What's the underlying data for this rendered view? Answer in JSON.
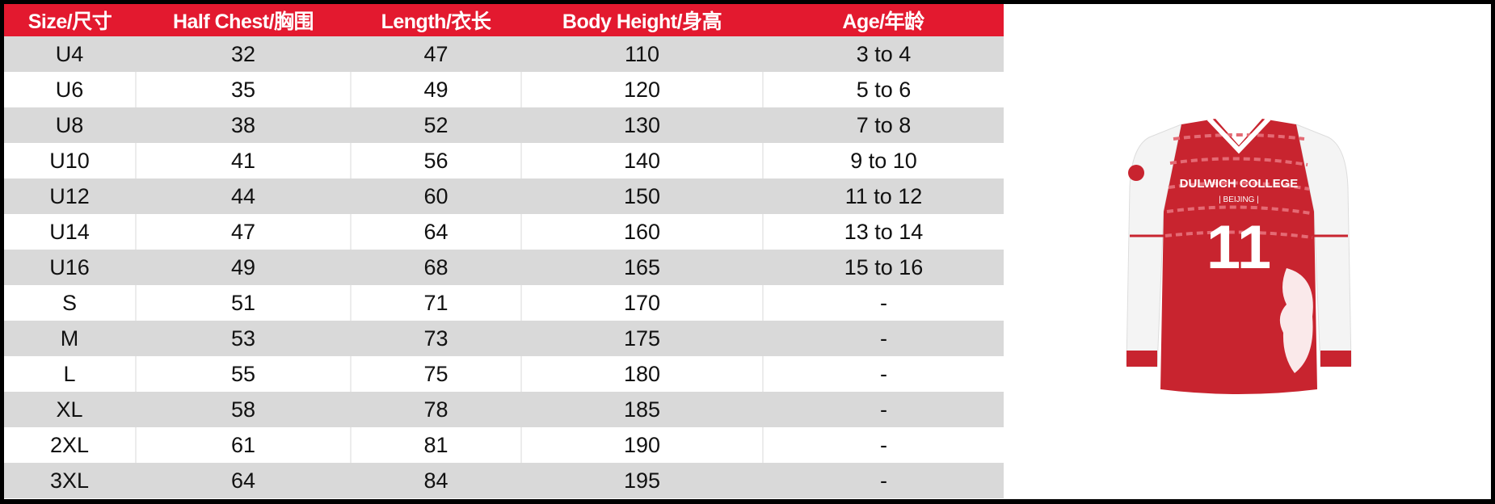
{
  "table": {
    "headers": [
      "Size/尺寸",
      "Half Chest/胸围",
      "Length/衣长",
      "Body Height/身高",
      "Age/年龄"
    ],
    "rows": [
      [
        "U4",
        "32",
        "47",
        "110",
        "3 to 4"
      ],
      [
        "U6",
        "35",
        "49",
        "120",
        "5 to 6"
      ],
      [
        "U8",
        "38",
        "52",
        "130",
        "7 to 8"
      ],
      [
        "U10",
        "41",
        "56",
        "140",
        "9 to 10"
      ],
      [
        "U12",
        "44",
        "60",
        "150",
        "11 to 12"
      ],
      [
        "U14",
        "47",
        "64",
        "160",
        "13 to 14"
      ],
      [
        "U16",
        "49",
        "68",
        "165",
        "15 to 16"
      ],
      [
        "S",
        "51",
        "71",
        "170",
        "-"
      ],
      [
        "M",
        "53",
        "73",
        "175",
        "-"
      ],
      [
        "L",
        "55",
        "75",
        "180",
        "-"
      ],
      [
        "XL",
        "58",
        "78",
        "185",
        "-"
      ],
      [
        "2XL",
        "61",
        "81",
        "190",
        "-"
      ],
      [
        "3XL",
        "64",
        "84",
        "195",
        "-"
      ]
    ]
  },
  "jersey": {
    "brand": "DULWICH COLLEGE",
    "sub": "| BEIJING |",
    "number": "11"
  },
  "colors": {
    "header": "#e3192f",
    "stripe": "#d9d9d9",
    "jersey_red": "#c8242f"
  }
}
